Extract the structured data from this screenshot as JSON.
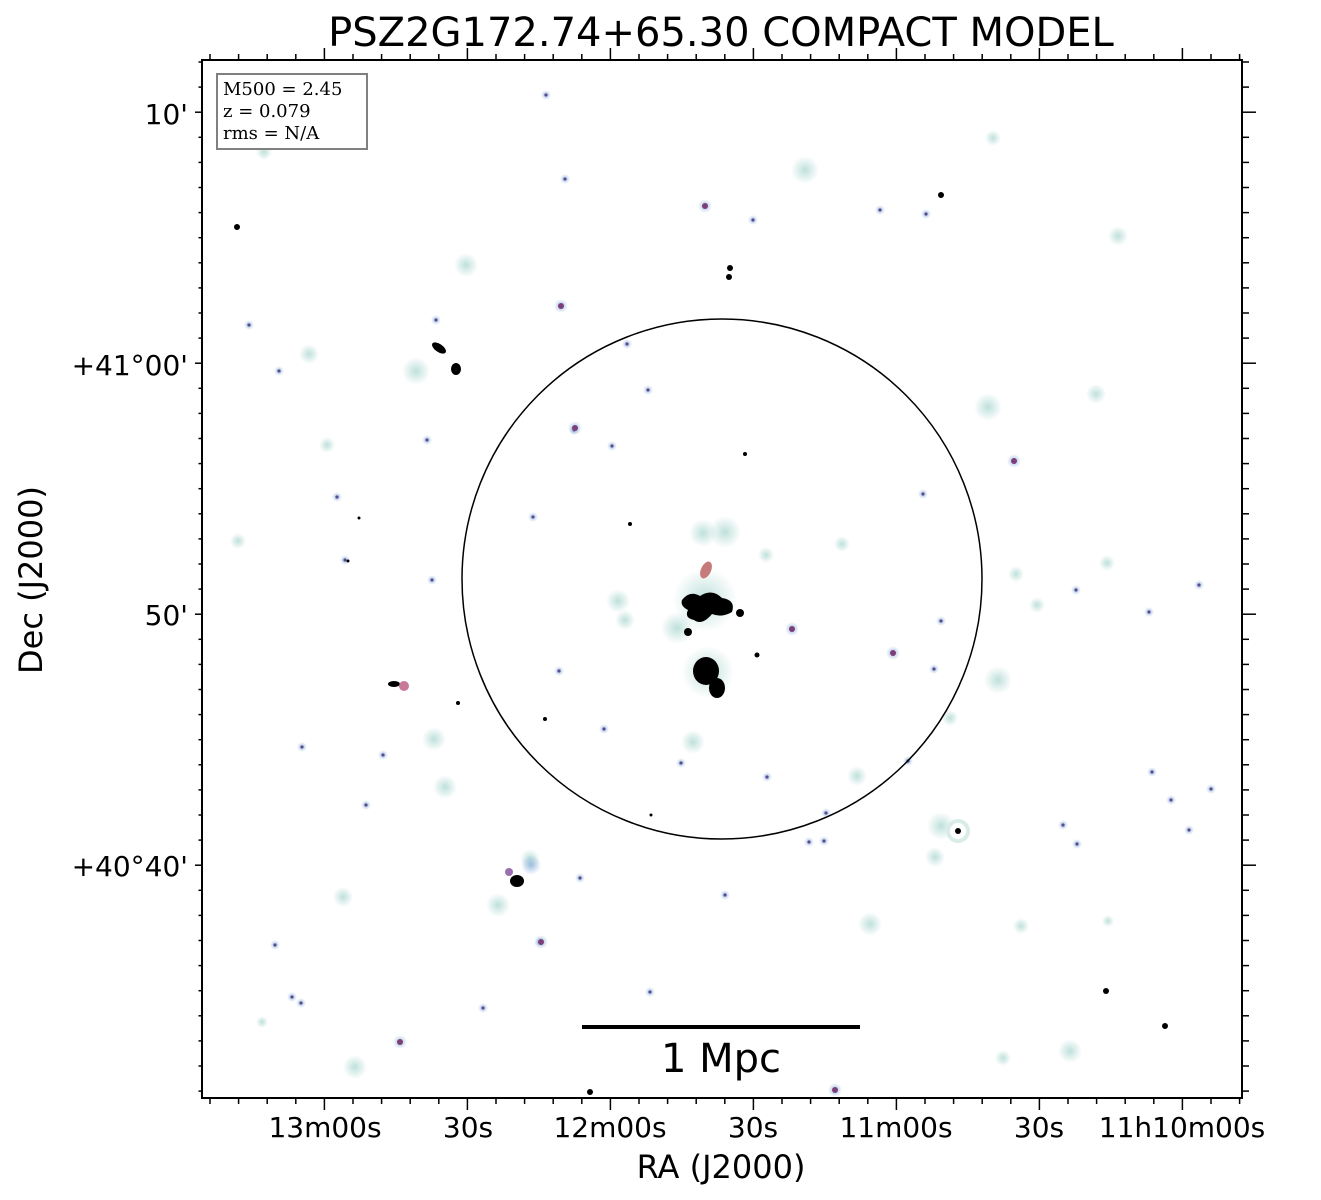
{
  "title": "PSZ2G172.74+65.30 COMPACT MODEL",
  "info_box": {
    "line1": "M500 = 2.45",
    "line2": "z = 0.079",
    "line3": "rms = N/A"
  },
  "axes": {
    "xlabel": "RA (J2000)",
    "ylabel": "Dec (J2000)",
    "x_ticks": [
      "13m00s",
      "30s",
      "12m00s",
      "30s",
      "11m00s",
      "30s",
      "11h10m00s"
    ],
    "y_ticks": [
      "10'",
      "+41°00'",
      "50'",
      "+40°40'"
    ]
  },
  "scale_bar": {
    "label": "1 Mpc"
  },
  "colors": {
    "background": "#ffffff",
    "axes": "#000000",
    "diffuse_emission": "#b8ddd8",
    "source_purple": "#7b5ea8",
    "source_dark": "#000000",
    "circle": "#000000"
  }
}
